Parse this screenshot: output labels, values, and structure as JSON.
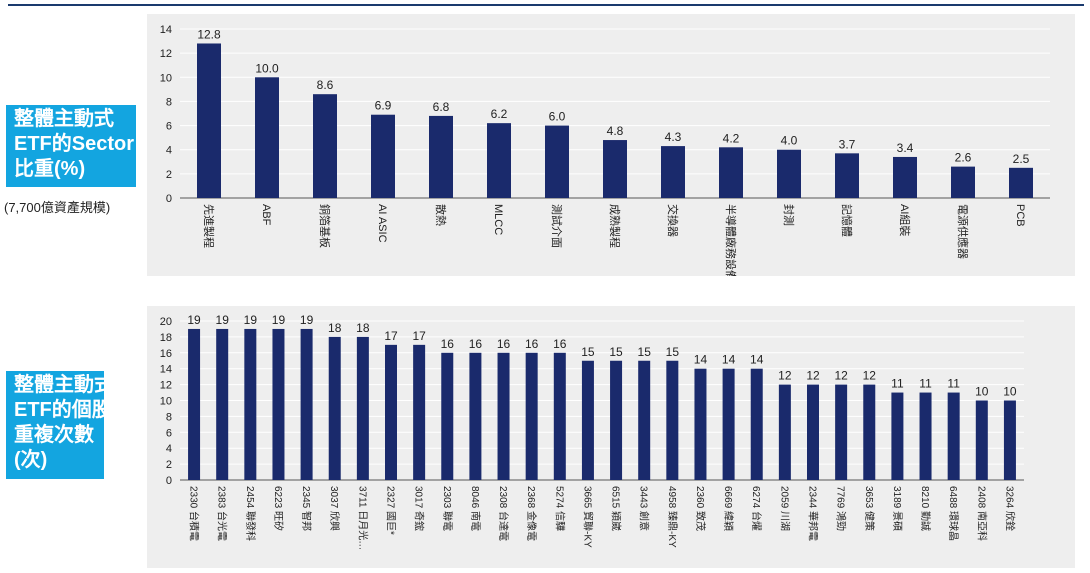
{
  "labels": {
    "chart1_side": [
      "整體主動式",
      "ETF的Sector",
      "比重(%)"
    ],
    "chart1_sub": "(7,700億資產規模)",
    "chart2_side": [
      "整體主動式",
      "ETF的個股",
      "重複次數",
      "(次)"
    ]
  },
  "colors": {
    "bar": "#1a2a6c",
    "side_bg": "#13a5e0",
    "panel_bg": "#eeeeee",
    "grid": "#ffffff"
  },
  "chart_data": [
    {
      "type": "bar",
      "categories": [
        "先進製程",
        "ABF",
        "銅箔基板",
        "AI ASIC",
        "散熱",
        "MLCC",
        "測試介面",
        "成熟製程",
        "交換器",
        "半導體廠務設備",
        "封測",
        "記憶體",
        "AI組裝",
        "電源供應器",
        "PCB"
      ],
      "values": [
        12.8,
        10.0,
        8.6,
        6.9,
        6.8,
        6.2,
        6.0,
        4.8,
        4.3,
        4.2,
        4.0,
        3.7,
        3.4,
        2.6,
        2.5
      ],
      "value_labels": [
        "12.8",
        "10.0",
        "8.6",
        "6.9",
        "6.8",
        "6.2",
        "6.0",
        "4.8",
        "4.3",
        "4.2",
        "4.0",
        "3.7",
        "3.4",
        "2.6",
        "2.5"
      ],
      "ylim": [
        0,
        14
      ],
      "yticks": [
        0,
        2,
        4,
        6,
        8,
        10,
        12,
        14
      ],
      "grid": true
    },
    {
      "type": "bar",
      "categories": [
        "2330 台積電",
        "2383 台光電",
        "2454 聯發科",
        "6223 旺矽",
        "2345 智邦",
        "3037 欣興",
        "3711 日月光…",
        "2327 國巨*",
        "3017 奇鋐",
        "2303 聯電",
        "8046 南電",
        "2308 台達電",
        "2368 金像電",
        "5274 信驊",
        "3665 貿聯-KY",
        "6515 穎崴",
        "3443 創意",
        "4958 臻鼎-KY",
        "2360 致茂",
        "6669 緯穎",
        "6274 台燿",
        "2059 川湖",
        "2344 華邦電",
        "7769 鴻勁",
        "3653 健策",
        "3189 景碩",
        "8210 勤誠",
        "6488 環球晶",
        "2408 南亞科",
        "3264 欣銓"
      ],
      "values": [
        19,
        19,
        19,
        19,
        19,
        18,
        18,
        17,
        17,
        16,
        16,
        16,
        16,
        16,
        15,
        15,
        15,
        15,
        14,
        14,
        14,
        12,
        12,
        12,
        12,
        11,
        11,
        11,
        10,
        10
      ],
      "ylim": [
        0,
        20
      ],
      "yticks": [
        0,
        2,
        4,
        6,
        8,
        10,
        12,
        14,
        16,
        18,
        20
      ],
      "grid": true
    }
  ]
}
